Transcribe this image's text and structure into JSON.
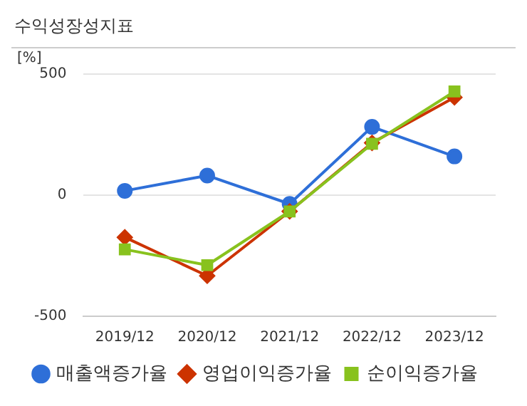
{
  "chart_data": {
    "type": "line",
    "title": "수익성장성지표",
    "ylabel": "[%]",
    "categories": [
      "2019/12",
      "2020/12",
      "2021/12",
      "2022/12",
      "2023/12"
    ],
    "series": [
      {
        "name": "매출액증가율",
        "color": "#2e6fd8",
        "marker": "circle",
        "values": [
          18,
          81,
          -36,
          282,
          160
        ]
      },
      {
        "name": "영업이익증가율",
        "color": "#cc3300",
        "marker": "diamond",
        "values": [
          -174,
          -333,
          -67,
          216,
          404
        ]
      },
      {
        "name": "순이익증가율",
        "color": "#88c21e",
        "marker": "square",
        "values": [
          -224,
          -289,
          -67,
          212,
          428
        ]
      }
    ],
    "ylim": [
      -500,
      500
    ],
    "yticks": [
      -500,
      0,
      500
    ],
    "grid": "y",
    "legend": "bottom"
  }
}
